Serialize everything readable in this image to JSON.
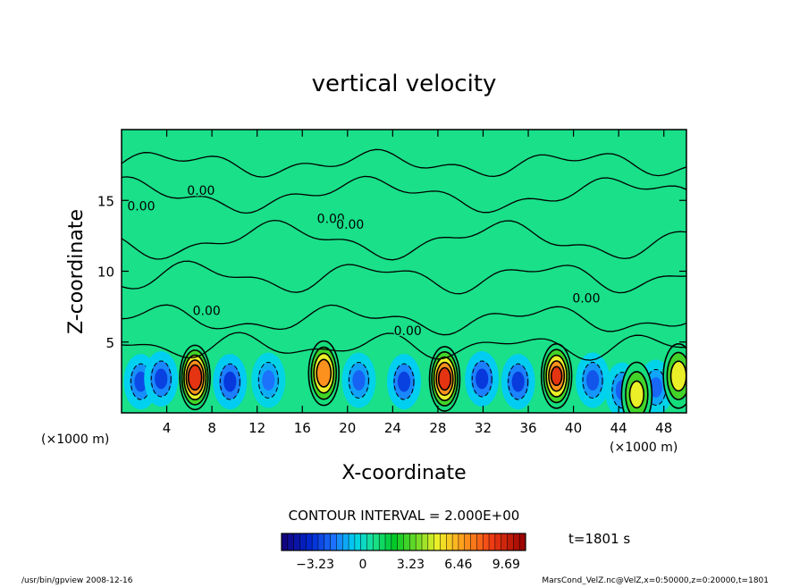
{
  "chart_data": {
    "type": "heatmap",
    "title": "vertical velocity",
    "xlabel": "X-coordinate",
    "ylabel": "Z-coordinate",
    "x_unit": "(×1000 m)",
    "y_unit": "(×1000 m)",
    "xlim": [
      0,
      50
    ],
    "ylim": [
      0,
      20
    ],
    "x_ticks": [
      4,
      8,
      12,
      16,
      20,
      24,
      28,
      32,
      36,
      40,
      44,
      48
    ],
    "y_ticks": [
      5,
      10,
      15
    ],
    "contour_interval_text": "CONTOUR INTERVAL = 2.000E+00",
    "contour_labels": [
      {
        "text": "0.00",
        "x": 17.3,
        "y": 13.4
      },
      {
        "text": "0.00",
        "x": 19.0,
        "y": 13.0
      },
      {
        "text": "0.00",
        "x": 5.8,
        "y": 15.4
      },
      {
        "text": "0.00",
        "x": 0.5,
        "y": 14.3
      },
      {
        "text": "0.00",
        "x": 6.3,
        "y": 6.9
      },
      {
        "text": "0.00",
        "x": 24.1,
        "y": 5.5
      },
      {
        "text": "0.00",
        "x": 39.9,
        "y": 7.8
      }
    ],
    "updrafts": [
      {
        "x": 6.5,
        "z": 2.5,
        "max": 9.69
      },
      {
        "x": 17.9,
        "z": 2.8,
        "max": 7.5
      },
      {
        "x": 28.6,
        "z": 2.4,
        "max": 9.0
      },
      {
        "x": 38.5,
        "z": 2.6,
        "max": 8.2
      },
      {
        "x": 45.6,
        "z": 1.3,
        "max": 4.5
      },
      {
        "x": 49.3,
        "z": 2.6,
        "max": 5.0
      }
    ],
    "downdrafts": [
      {
        "x": 1.7,
        "z": 2.2,
        "min": -2.8
      },
      {
        "x": 3.5,
        "z": 2.4,
        "min": -3.0
      },
      {
        "x": 9.6,
        "z": 2.2,
        "min": -3.2
      },
      {
        "x": 13.0,
        "z": 2.3,
        "min": -2.0
      },
      {
        "x": 21.0,
        "z": 2.3,
        "min": -2.3
      },
      {
        "x": 25.0,
        "z": 2.2,
        "min": -3.0
      },
      {
        "x": 31.9,
        "z": 2.4,
        "min": -3.2
      },
      {
        "x": 35.1,
        "z": 2.2,
        "min": -3.1
      },
      {
        "x": 41.7,
        "z": 2.3,
        "min": -2.6
      },
      {
        "x": 44.3,
        "z": 1.6,
        "min": -2.4
      },
      {
        "x": 47.3,
        "z": 1.8,
        "min": -2.2
      }
    ],
    "colorbar": {
      "ticks": [
        "−3.23",
        "0",
        "3.23",
        "6.46",
        "9.69"
      ],
      "tick_values": [
        -3.23,
        0,
        3.23,
        6.46,
        9.69
      ],
      "range": [
        -5.5,
        11.0
      ]
    },
    "time_label": "t=1801 s",
    "footer_left": "/usr/bin/gpview   2008-12-16",
    "footer_right": "MarsCond_VelZ.nc@VelZ,x=0:50000,z=0:20000,t=1801",
    "colors": {
      "background_field": "#19e089",
      "contour": "#000000"
    }
  }
}
